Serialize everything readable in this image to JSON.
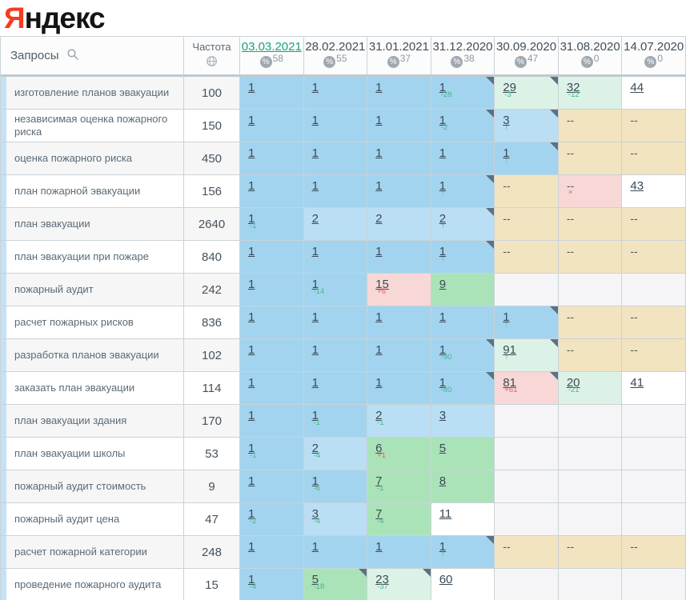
{
  "logo": {
    "ya": "Я",
    "rest": "ндекс"
  },
  "table": {
    "queries_label": "Запросы",
    "frequency_label": "Частота",
    "date_columns": [
      {
        "date": "03.03.2021",
        "percent": "58",
        "active": true
      },
      {
        "date": "28.02.2021",
        "percent": "55",
        "active": false
      },
      {
        "date": "31.01.2021",
        "percent": "37",
        "active": false
      },
      {
        "date": "31.12.2020",
        "percent": "38",
        "active": false
      },
      {
        "date": "30.09.2020",
        "percent": "47",
        "active": false
      },
      {
        "date": "31.08.2020",
        "percent": "0",
        "active": false
      },
      {
        "date": "14.07.2020",
        "percent": "0",
        "active": false
      }
    ],
    "rows": [
      {
        "query": "изготовление планов эвакуации",
        "freq": "100",
        "cells": [
          {
            "v": "1",
            "bg": "blue1"
          },
          {
            "v": "1",
            "bg": "blue1"
          },
          {
            "v": "1",
            "bg": "blue1"
          },
          {
            "v": "1",
            "bg": "blue1",
            "sup": "-28",
            "st": "good",
            "tri": true
          },
          {
            "v": "29",
            "bg": "lgreen",
            "sup": "-3",
            "st": "good",
            "tri": true
          },
          {
            "v": "32",
            "bg": "lgreen",
            "sup": "-12",
            "st": "good"
          },
          {
            "v": "44",
            "bg": "white"
          }
        ]
      },
      {
        "query": "независимая оценка пожарного риска",
        "freq": "150",
        "cells": [
          {
            "v": "1",
            "bg": "blue1"
          },
          {
            "v": "1",
            "bg": "blue1"
          },
          {
            "v": "1",
            "bg": "blue1"
          },
          {
            "v": "1",
            "bg": "blue1",
            "sup": "-2",
            "st": "good",
            "tri": true
          },
          {
            "v": "3",
            "bg": "blue2",
            "arrow": true,
            "tri": true
          },
          {
            "v": "--",
            "bg": "tan"
          },
          {
            "v": "--",
            "bg": "tan"
          }
        ]
      },
      {
        "query": "оценка пожарного риска",
        "freq": "450",
        "cells": [
          {
            "v": "1",
            "bg": "blue1"
          },
          {
            "v": "1",
            "bg": "blue1"
          },
          {
            "v": "1",
            "bg": "blue1"
          },
          {
            "v": "1",
            "bg": "blue1"
          },
          {
            "v": "1",
            "bg": "blue1",
            "arrow": true,
            "tri": true
          },
          {
            "v": "--",
            "bg": "tan"
          },
          {
            "v": "--",
            "bg": "tan"
          }
        ]
      },
      {
        "query": "план пожарной эвакуации",
        "freq": "156",
        "cells": [
          {
            "v": "1",
            "bg": "blue1"
          },
          {
            "v": "1",
            "bg": "blue1"
          },
          {
            "v": "1",
            "bg": "blue1"
          },
          {
            "v": "1",
            "bg": "blue1",
            "arrow": true,
            "tri": true
          },
          {
            "v": "--",
            "bg": "tan"
          },
          {
            "v": "--",
            "bg": "pink",
            "sup": "×",
            "st": "bad"
          },
          {
            "v": "43",
            "bg": "white"
          }
        ]
      },
      {
        "query": "план эвакуации",
        "freq": "2640",
        "cells": [
          {
            "v": "1",
            "bg": "blue1",
            "sup": "-1",
            "st": "good"
          },
          {
            "v": "2",
            "bg": "blue2"
          },
          {
            "v": "2",
            "bg": "blue2"
          },
          {
            "v": "2",
            "bg": "blue2",
            "arrow": true,
            "tri": true
          },
          {
            "v": "--",
            "bg": "tan"
          },
          {
            "v": "--",
            "bg": "tan"
          },
          {
            "v": "--",
            "bg": "tan"
          }
        ]
      },
      {
        "query": "план эвакуации при пожаре",
        "freq": "840",
        "cells": [
          {
            "v": "1",
            "bg": "blue1"
          },
          {
            "v": "1",
            "bg": "blue1"
          },
          {
            "v": "1",
            "bg": "blue1"
          },
          {
            "v": "1",
            "bg": "blue1",
            "arrow": true,
            "tri": true
          },
          {
            "v": "--",
            "bg": "tan"
          },
          {
            "v": "--",
            "bg": "tan"
          },
          {
            "v": "--",
            "bg": "tan"
          }
        ]
      },
      {
        "query": "пожарный аудит",
        "freq": "242",
        "cells": [
          {
            "v": "1",
            "bg": "blue1"
          },
          {
            "v": "1",
            "bg": "blue1",
            "sup": "-14",
            "st": "good"
          },
          {
            "v": "15",
            "bg": "pink",
            "sup": "+6",
            "st": "bad"
          },
          {
            "v": "9",
            "bg": "green"
          },
          {
            "v": "",
            "bg": "empty"
          },
          {
            "v": "",
            "bg": "empty"
          },
          {
            "v": "",
            "bg": "empty"
          }
        ]
      },
      {
        "query": "расчет пожарных рисков",
        "freq": "836",
        "cells": [
          {
            "v": "1",
            "bg": "blue1"
          },
          {
            "v": "1",
            "bg": "blue1"
          },
          {
            "v": "1",
            "bg": "blue1"
          },
          {
            "v": "1",
            "bg": "blue1"
          },
          {
            "v": "1",
            "bg": "blue1",
            "arrow": true,
            "tri": true
          },
          {
            "v": "--",
            "bg": "tan"
          },
          {
            "v": "--",
            "bg": "tan"
          }
        ]
      },
      {
        "query": "разработка планов эвакуации",
        "freq": "102",
        "cells": [
          {
            "v": "1",
            "bg": "blue1"
          },
          {
            "v": "1",
            "bg": "blue1"
          },
          {
            "v": "1",
            "bg": "blue1"
          },
          {
            "v": "1",
            "bg": "blue1",
            "sup": "-90",
            "st": "good",
            "tri": true
          },
          {
            "v": "91",
            "bg": "lgreen",
            "arrow": true,
            "tri": true
          },
          {
            "v": "--",
            "bg": "tan"
          },
          {
            "v": "--",
            "bg": "tan"
          }
        ]
      },
      {
        "query": "заказать план эвакуации",
        "freq": "114",
        "cells": [
          {
            "v": "1",
            "bg": "blue1"
          },
          {
            "v": "1",
            "bg": "blue1"
          },
          {
            "v": "1",
            "bg": "blue1"
          },
          {
            "v": "1",
            "bg": "blue1",
            "sup": "-80",
            "st": "good",
            "tri": true
          },
          {
            "v": "81",
            "bg": "pink",
            "sup": "+61",
            "st": "bad",
            "tri": true
          },
          {
            "v": "20",
            "bg": "lgreen",
            "sup": "-21",
            "st": "good"
          },
          {
            "v": "41",
            "bg": "white"
          }
        ]
      },
      {
        "query": "план эвакуации здания",
        "freq": "170",
        "cells": [
          {
            "v": "1",
            "bg": "blue1"
          },
          {
            "v": "1",
            "bg": "blue1",
            "sup": "-1",
            "st": "good"
          },
          {
            "v": "2",
            "bg": "blue2",
            "sup": "-1",
            "st": "good"
          },
          {
            "v": "3",
            "bg": "blue2"
          },
          {
            "v": "",
            "bg": "empty"
          },
          {
            "v": "",
            "bg": "empty"
          },
          {
            "v": "",
            "bg": "empty"
          }
        ]
      },
      {
        "query": "план эвакуации школы",
        "freq": "53",
        "cells": [
          {
            "v": "1",
            "bg": "blue1",
            "sup": "-1",
            "st": "good"
          },
          {
            "v": "2",
            "bg": "blue2",
            "sup": "-4",
            "st": "good"
          },
          {
            "v": "6",
            "bg": "green",
            "sup": "+1",
            "st": "bad"
          },
          {
            "v": "5",
            "bg": "green"
          },
          {
            "v": "",
            "bg": "empty"
          },
          {
            "v": "",
            "bg": "empty"
          },
          {
            "v": "",
            "bg": "empty"
          }
        ]
      },
      {
        "query": "пожарный аудит стоимость",
        "freq": "9",
        "cells": [
          {
            "v": "1",
            "bg": "blue1"
          },
          {
            "v": "1",
            "bg": "blue1",
            "sup": "-6",
            "st": "good"
          },
          {
            "v": "7",
            "bg": "green",
            "sup": "-1",
            "st": "good"
          },
          {
            "v": "8",
            "bg": "green"
          },
          {
            "v": "",
            "bg": "empty"
          },
          {
            "v": "",
            "bg": "empty"
          },
          {
            "v": "",
            "bg": "empty"
          }
        ]
      },
      {
        "query": "пожарный аудит цена",
        "freq": "47",
        "cells": [
          {
            "v": "1",
            "bg": "blue1",
            "sup": "-2",
            "st": "good"
          },
          {
            "v": "3",
            "bg": "blue2",
            "sup": "-4",
            "st": "good"
          },
          {
            "v": "7",
            "bg": "green",
            "sup": "-4",
            "st": "good"
          },
          {
            "v": "11",
            "bg": "white"
          },
          {
            "v": "",
            "bg": "empty"
          },
          {
            "v": "",
            "bg": "empty"
          },
          {
            "v": "",
            "bg": "empty"
          }
        ]
      },
      {
        "query": "расчет пожарной категории",
        "freq": "248",
        "cells": [
          {
            "v": "1",
            "bg": "blue1"
          },
          {
            "v": "1",
            "bg": "blue1"
          },
          {
            "v": "1",
            "bg": "blue1"
          },
          {
            "v": "1",
            "bg": "blue1",
            "arrow": true,
            "tri": true
          },
          {
            "v": "--",
            "bg": "tan"
          },
          {
            "v": "--",
            "bg": "tan"
          },
          {
            "v": "--",
            "bg": "tan"
          }
        ]
      },
      {
        "query": "проведение пожарного аудита",
        "freq": "15",
        "cells": [
          {
            "v": "1",
            "bg": "blue1",
            "sup": "-4",
            "st": "good"
          },
          {
            "v": "5",
            "bg": "green",
            "sup": "-18",
            "st": "good",
            "tri": true
          },
          {
            "v": "23",
            "bg": "lgreen",
            "sup": "-37",
            "st": "good",
            "tri": true
          },
          {
            "v": "60",
            "bg": "white"
          },
          {
            "v": "",
            "bg": "empty"
          },
          {
            "v": "",
            "bg": "empty"
          },
          {
            "v": "",
            "bg": "empty"
          }
        ]
      }
    ]
  },
  "colors": {
    "brand_red": "#f53b20",
    "blue1": "#a2d4ef",
    "blue2": "#badef3",
    "green": "#abe3b8",
    "lgreen": "#ddf2e6",
    "pink": "#f8d8d6",
    "tan": "#f2e4c0",
    "empty": "#f5f5f7",
    "sup_good": "#4ab28d",
    "sup_bad": "#e2625e",
    "arrow": "#5aa896",
    "triangle": "#5d7181",
    "stripe": "#c5e1f4",
    "active_date": "#15a480",
    "border": "#c9d3d8",
    "header_border": "#bfc9cf"
  }
}
